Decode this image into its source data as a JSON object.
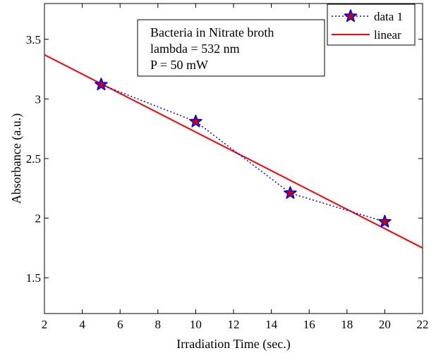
{
  "chart_data": {
    "type": "line",
    "xlabel": "Irradiation Time (sec.)",
    "ylabel": "Absorbance (a.u.)",
    "xlim": [
      2,
      22
    ],
    "ylim": [
      1.2,
      3.8
    ],
    "xticks": [
      2,
      4,
      6,
      8,
      10,
      12,
      14,
      16,
      18,
      20,
      22
    ],
    "yticks": [
      1.5,
      2,
      2.5,
      3,
      3.5
    ],
    "xtick_labels": [
      "2",
      "4",
      "6",
      "8",
      "10",
      "12",
      "14",
      "16",
      "18",
      "20",
      "22"
    ],
    "ytick_labels": [
      "1.5",
      "2",
      "2.5",
      "3",
      "3.5"
    ],
    "grid": false,
    "legend_position": "top-right",
    "series": [
      {
        "name": "data 1",
        "style": "dotted-line-star-markers",
        "color": "#0000ff",
        "marker_fill": "#cc0000",
        "x": [
          5,
          10,
          15,
          20
        ],
        "y": [
          3.12,
          2.81,
          2.21,
          1.97
        ]
      },
      {
        "name": "linear",
        "style": "solid-line",
        "color": "#ff0000",
        "x": [
          2,
          22
        ],
        "y": [
          3.37,
          1.75
        ]
      }
    ],
    "annotation": {
      "lines": [
        "Bacteria in Nitrate broth",
        "lambda = 532 nm",
        "P = 50 mW"
      ]
    }
  }
}
